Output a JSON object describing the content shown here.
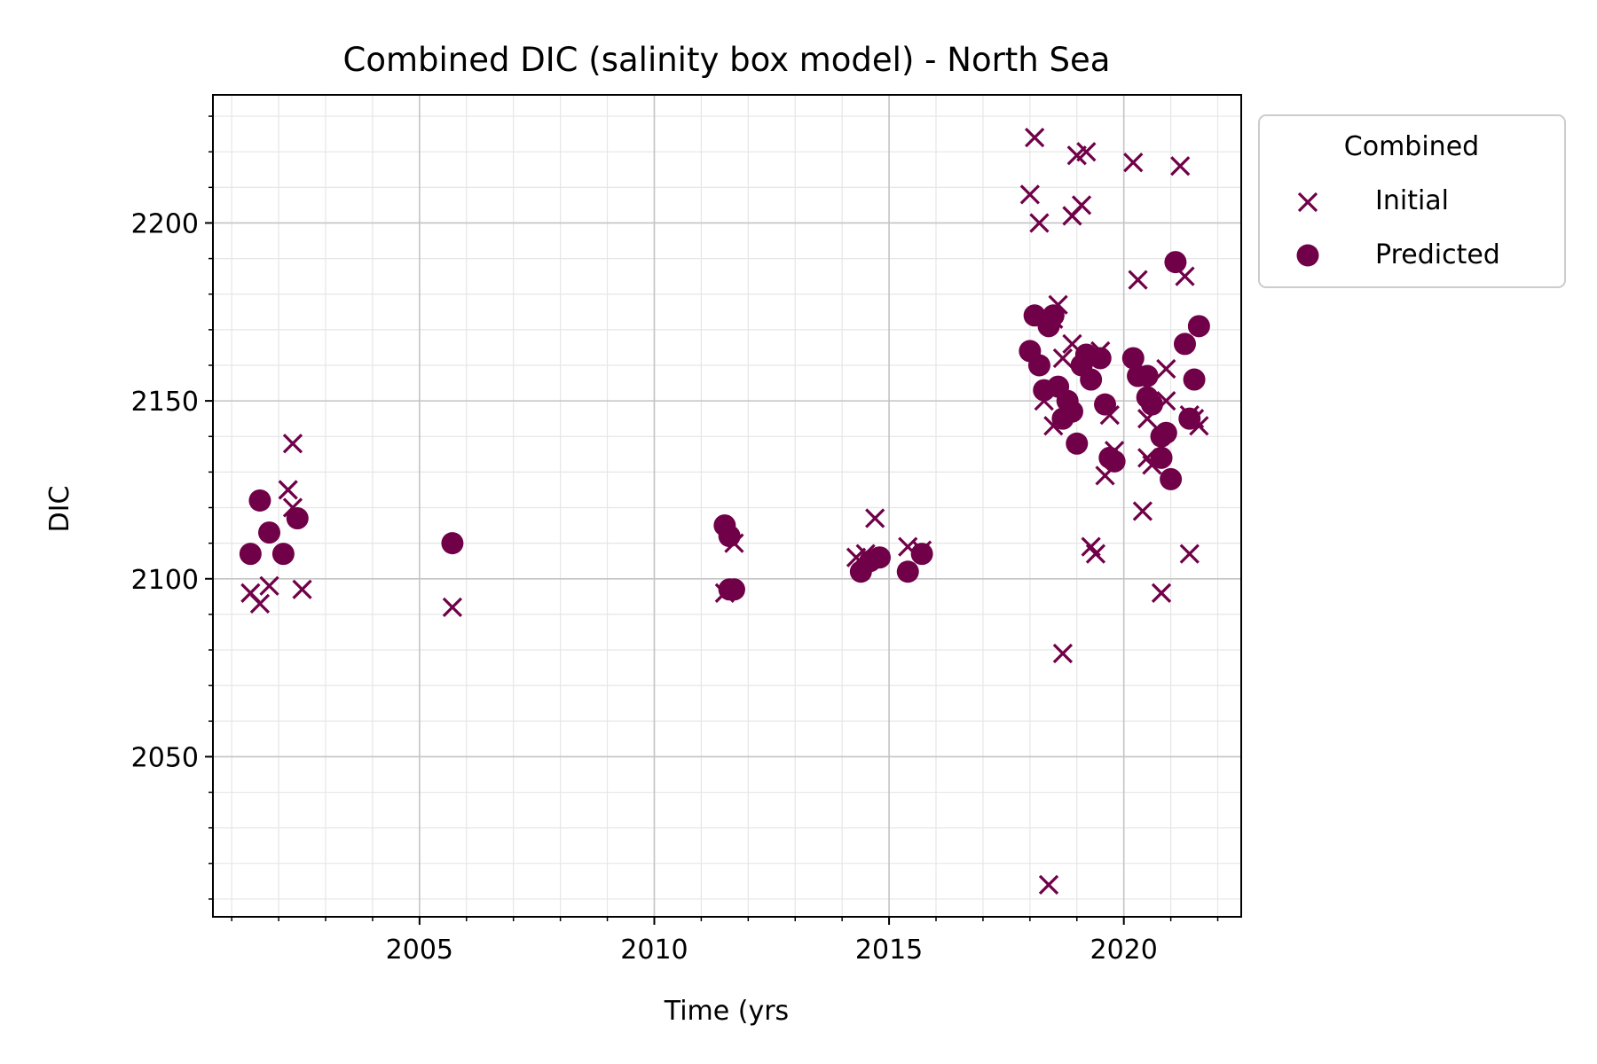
{
  "chart_data": {
    "type": "scatter",
    "title": "Combined DIC (salinity box model) - North Sea",
    "xlabel": "Time (yrs",
    "ylabel": "DIC",
    "xlim": [
      2000.6,
      2022.5
    ],
    "ylim": [
      2005,
      2236
    ],
    "x_ticks": [
      2005,
      2010,
      2015,
      2020
    ],
    "y_ticks": [
      2050,
      2100,
      2150,
      2200
    ],
    "grid": "major and minor",
    "legend": {
      "title": "Combined",
      "placement": "outside upper right"
    },
    "colors": {
      "series": "#700048"
    },
    "series": [
      {
        "name": "Initial",
        "marker": "x",
        "points": [
          [
            2001.4,
            2096
          ],
          [
            2001.6,
            2093
          ],
          [
            2001.8,
            2098
          ],
          [
            2002.2,
            2125
          ],
          [
            2002.3,
            2120
          ],
          [
            2002.3,
            2138
          ],
          [
            2002.5,
            2097
          ],
          [
            2005.7,
            2092
          ],
          [
            2011.5,
            2096
          ],
          [
            2011.7,
            2110
          ],
          [
            2014.3,
            2106
          ],
          [
            2014.5,
            2107
          ],
          [
            2014.7,
            2117
          ],
          [
            2015.4,
            2109
          ],
          [
            2015.7,
            2108
          ],
          [
            2018.0,
            2208
          ],
          [
            2018.1,
            2224
          ],
          [
            2018.2,
            2200
          ],
          [
            2018.3,
            2150
          ],
          [
            2018.4,
            2014
          ],
          [
            2018.5,
            2143
          ],
          [
            2018.5,
            2173
          ],
          [
            2018.6,
            2177
          ],
          [
            2018.7,
            2079
          ],
          [
            2018.7,
            2162
          ],
          [
            2018.9,
            2166
          ],
          [
            2018.9,
            2202
          ],
          [
            2019.0,
            2219
          ],
          [
            2019.1,
            2205
          ],
          [
            2019.2,
            2220
          ],
          [
            2019.3,
            2109
          ],
          [
            2019.4,
            2107
          ],
          [
            2019.4,
            2162
          ],
          [
            2019.5,
            2164
          ],
          [
            2019.6,
            2129
          ],
          [
            2019.7,
            2146
          ],
          [
            2019.8,
            2136
          ],
          [
            2020.2,
            2217
          ],
          [
            2020.3,
            2184
          ],
          [
            2020.4,
            2119
          ],
          [
            2020.5,
            2134
          ],
          [
            2020.5,
            2145
          ],
          [
            2020.6,
            2132
          ],
          [
            2020.8,
            2096
          ],
          [
            2020.9,
            2150
          ],
          [
            2020.9,
            2159
          ],
          [
            2021.2,
            2216
          ],
          [
            2021.3,
            2185
          ],
          [
            2021.4,
            2146
          ],
          [
            2021.4,
            2107
          ],
          [
            2021.5,
            2145
          ],
          [
            2021.6,
            2143
          ]
        ]
      },
      {
        "name": "Predicted",
        "marker": "o",
        "points": [
          [
            2001.4,
            2107
          ],
          [
            2001.6,
            2122
          ],
          [
            2001.8,
            2113
          ],
          [
            2002.1,
            2107
          ],
          [
            2002.4,
            2117
          ],
          [
            2005.7,
            2110
          ],
          [
            2011.5,
            2115
          ],
          [
            2011.6,
            2112
          ],
          [
            2011.6,
            2097
          ],
          [
            2011.7,
            2097
          ],
          [
            2014.4,
            2102
          ],
          [
            2014.6,
            2105
          ],
          [
            2014.8,
            2106
          ],
          [
            2015.4,
            2102
          ],
          [
            2015.7,
            2107
          ],
          [
            2018.0,
            2164
          ],
          [
            2018.1,
            2174
          ],
          [
            2018.2,
            2160
          ],
          [
            2018.3,
            2153
          ],
          [
            2018.4,
            2171
          ],
          [
            2018.5,
            2174
          ],
          [
            2018.6,
            2154
          ],
          [
            2018.7,
            2145
          ],
          [
            2018.8,
            2150
          ],
          [
            2018.9,
            2147
          ],
          [
            2019.0,
            2138
          ],
          [
            2019.1,
            2160
          ],
          [
            2019.2,
            2163
          ],
          [
            2019.3,
            2156
          ],
          [
            2019.5,
            2162
          ],
          [
            2019.6,
            2149
          ],
          [
            2019.7,
            2134
          ],
          [
            2019.8,
            2133
          ],
          [
            2020.2,
            2162
          ],
          [
            2020.3,
            2157
          ],
          [
            2020.5,
            2157
          ],
          [
            2020.5,
            2151
          ],
          [
            2020.6,
            2149
          ],
          [
            2020.8,
            2140
          ],
          [
            2020.8,
            2134
          ],
          [
            2020.9,
            2141
          ],
          [
            2021.0,
            2128
          ],
          [
            2021.1,
            2189
          ],
          [
            2021.3,
            2166
          ],
          [
            2021.4,
            2145
          ],
          [
            2021.5,
            2156
          ],
          [
            2021.6,
            2171
          ]
        ]
      }
    ]
  }
}
